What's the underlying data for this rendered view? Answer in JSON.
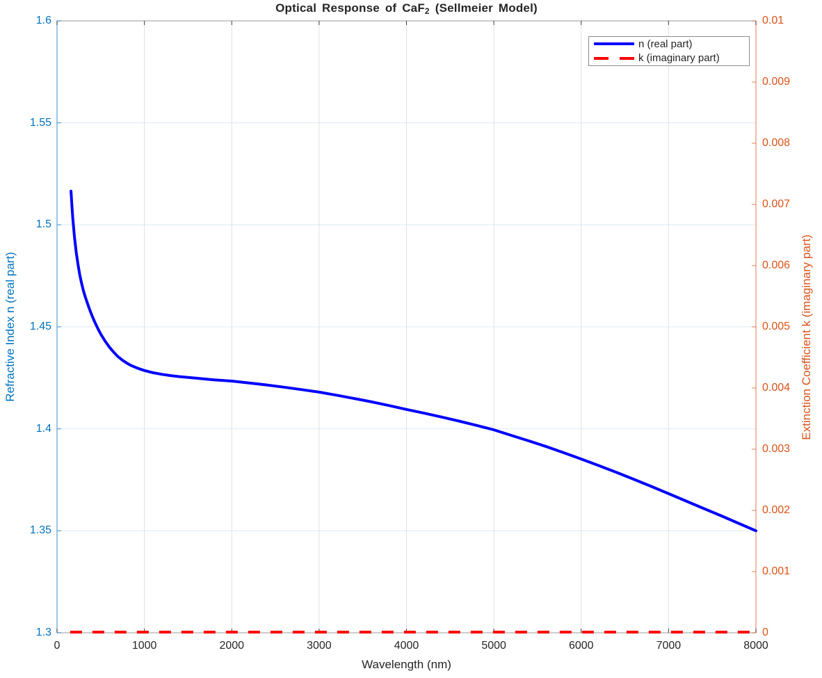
{
  "title": {
    "prefix": "Optical Response of CaF",
    "subscript": "2",
    "suffix": " (Sellmeier Model)"
  },
  "axes": {
    "x": {
      "label": "Wavelength (nm)"
    },
    "left": {
      "label": "Refractive Index n (real part)",
      "color": "#0072BD"
    },
    "right": {
      "label": "Extinction Coefficient k (imaginary part)",
      "color": "#D95319"
    }
  },
  "legend": {
    "position": "northeast",
    "items": [
      {
        "label": "n (real part)",
        "color": "#0000ff",
        "style": "solid"
      },
      {
        "label": "k (imaginary part)",
        "color": "#ff0000",
        "style": "dashed"
      }
    ]
  },
  "chart_data": {
    "type": "line",
    "title": "Optical Response of CaF2 (Sellmeier Model)",
    "xlabel": "Wavelength (nm)",
    "ylabel_left": "Refractive Index n (real part)",
    "ylabel_right": "Extinction Coefficient k (imaginary part)",
    "xlim": [
      0,
      8000
    ],
    "ylim_left": [
      1.3,
      1.6
    ],
    "ylim_right": [
      0,
      0.01
    ],
    "grid": true,
    "x_ticks": {
      "values": [
        0,
        1000,
        2000,
        3000,
        4000,
        5000,
        6000,
        7000,
        8000
      ],
      "labels": [
        "0",
        "1000",
        "2000",
        "3000",
        "4000",
        "5000",
        "6000",
        "7000",
        "8000"
      ]
    },
    "y_ticks_left": {
      "values": [
        1.3,
        1.35,
        1.4,
        1.45,
        1.5,
        1.55,
        1.6
      ],
      "labels": [
        "1.3",
        "1.35",
        "1.4",
        "1.45",
        "1.5",
        "1.55",
        "1.6"
      ]
    },
    "y_ticks_right": {
      "values": [
        0,
        0.001,
        0.002,
        0.003,
        0.004,
        0.005,
        0.006,
        0.007,
        0.008,
        0.009,
        0.01
      ],
      "labels": [
        "0",
        "0.001",
        "0.002",
        "0.003",
        "0.004",
        "0.005",
        "0.006",
        "0.007",
        "0.008",
        "0.009",
        "0.01"
      ]
    },
    "colors": {
      "n_line": "#0000ff",
      "k_line": "#ff0000",
      "left_axis": "#0072BD",
      "right_axis": "#D95319",
      "x_axis": "#262626",
      "grid_vertical": "#e0e0e0",
      "grid_horizontal": "#dcebf5"
    },
    "series": [
      {
        "name": "n (real part)",
        "axis": "left",
        "style": "solid",
        "x": [
          160,
          170,
          180,
          190,
          200,
          220,
          240,
          260,
          280,
          300,
          325,
          350,
          375,
          400,
          425,
          450,
          475,
          500,
          550,
          600,
          650,
          700,
          750,
          800,
          850,
          900,
          950,
          1000,
          1100,
          1200,
          1300,
          1400,
          1500,
          1600,
          1700,
          1800,
          1900,
          2000,
          2200,
          2400,
          2600,
          2800,
          3000,
          3200,
          3400,
          3600,
          3800,
          4000,
          4200,
          4400,
          4600,
          4800,
          5000,
          5200,
          5400,
          5600,
          5800,
          6000,
          6200,
          6400,
          6600,
          6800,
          7000,
          7200,
          7400,
          7600,
          7800,
          8000
        ],
        "y": [
          1.5165,
          1.5095,
          1.5035,
          1.4985,
          1.494,
          1.4865,
          1.4805,
          1.4755,
          1.4715,
          1.468,
          1.4645,
          1.4613,
          1.4583,
          1.4555,
          1.453,
          1.4507,
          1.4485,
          1.4465,
          1.443,
          1.44,
          1.4375,
          1.4353,
          1.4336,
          1.4322,
          1.431,
          1.4301,
          1.4293,
          1.4286,
          1.4275,
          1.4267,
          1.4261,
          1.4256,
          1.4252,
          1.4248,
          1.4244,
          1.424,
          1.4237,
          1.4234,
          1.4225,
          1.4215,
          1.4204,
          1.4192,
          1.418,
          1.4165,
          1.4149,
          1.4132,
          1.4114,
          1.4095,
          1.4077,
          1.4058,
          1.4038,
          1.4017,
          1.3995,
          1.3968,
          1.3941,
          1.3913,
          1.3883,
          1.3852,
          1.382,
          1.3787,
          1.3753,
          1.3718,
          1.3682,
          1.3646,
          1.361,
          1.3574,
          1.3537,
          1.35
        ]
      },
      {
        "name": "k (imaginary part)",
        "axis": "right",
        "style": "dashed",
        "x": [
          150,
          8000
        ],
        "y": [
          0,
          0
        ]
      }
    ]
  }
}
